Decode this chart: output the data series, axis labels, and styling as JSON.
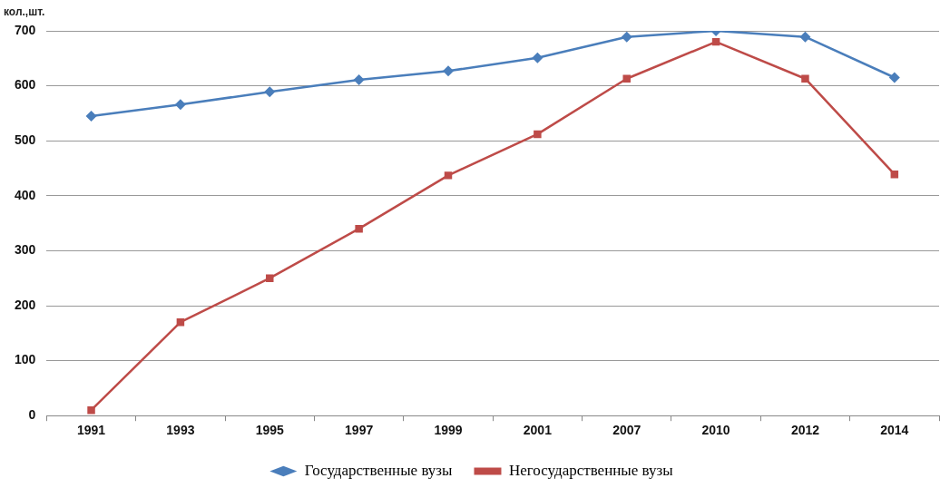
{
  "chart_data": {
    "type": "line",
    "ylabel": "кол.,шт.",
    "categories": [
      "1991",
      "1993",
      "1995",
      "1997",
      "1999",
      "2001",
      "2007",
      "2010",
      "2012",
      "2014"
    ],
    "series": [
      {
        "name": "Государственные вузы",
        "color": "#4a7ebb",
        "marker": "diamond",
        "values": [
          545,
          566,
          589,
          611,
          627,
          651,
          689,
          700,
          689,
          615
        ]
      },
      {
        "name": "Негосударственные вузы",
        "color": "#be4b48",
        "marker": "square",
        "values": [
          10,
          170,
          250,
          340,
          437,
          512,
          613,
          680,
          613,
          439
        ]
      }
    ],
    "ylim": [
      0,
      700
    ],
    "yticks": [
      0,
      100,
      200,
      300,
      400,
      500,
      600,
      700
    ],
    "grid": "y",
    "legend": "bottom",
    "line_style": "solid"
  }
}
